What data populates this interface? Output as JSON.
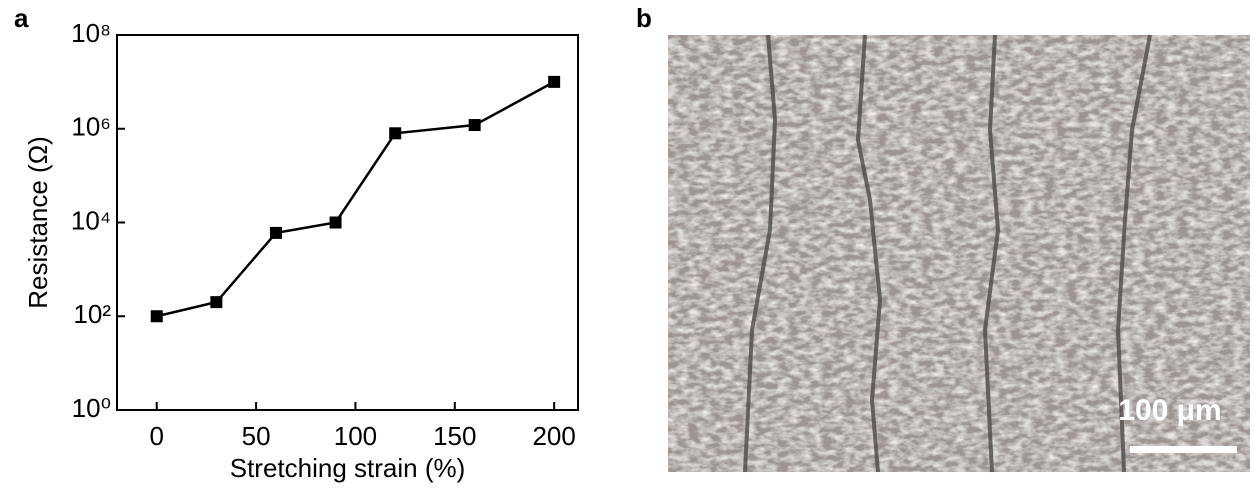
{
  "panel_labels": [
    "a",
    "b"
  ],
  "chart_data": {
    "type": "line",
    "x_label": "Stretching strain (%)",
    "y_label": "Resistance (Ω)",
    "x": [
      0,
      30,
      60,
      90,
      120,
      160,
      200
    ],
    "series": [
      {
        "color": "#000000",
        "values": [
          100,
          200,
          6000,
          10000,
          800000,
          1200000,
          10000000
        ]
      }
    ],
    "xlim": [
      -20,
      212
    ],
    "xticks": [
      0,
      50,
      100,
      150,
      200
    ],
    "ylim": [
      1,
      100000000
    ],
    "yscale": "log",
    "yticks": [
      {
        "value": 1,
        "label": "10⁰"
      },
      {
        "value": 100,
        "label": "10²"
      },
      {
        "value": 10000,
        "label": "10⁴"
      },
      {
        "value": 1000000,
        "label": "10⁶"
      },
      {
        "value": 100000000,
        "label": "10⁸"
      }
    ]
  },
  "micrograph": {
    "scale_bar_label": "100 μm"
  }
}
